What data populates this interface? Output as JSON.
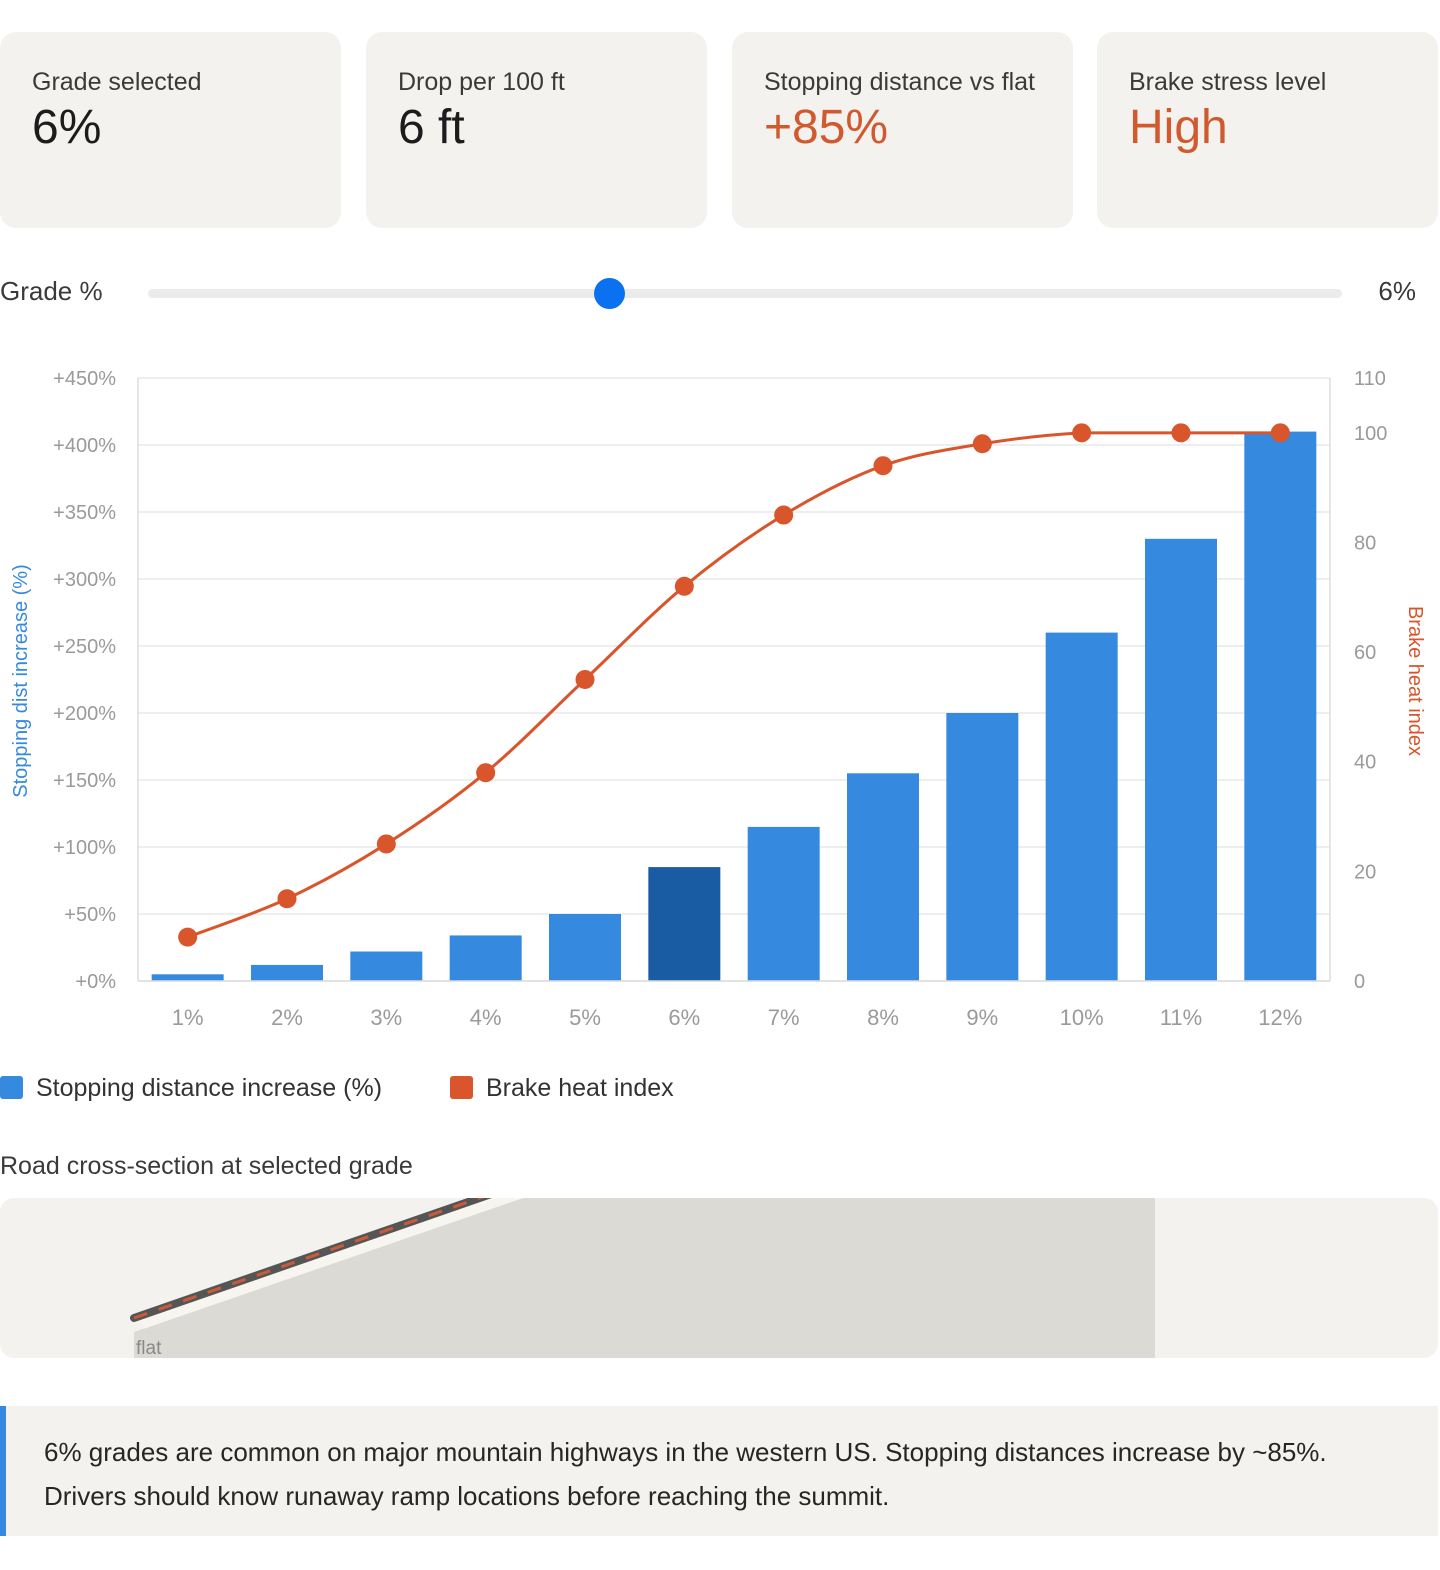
{
  "stats": [
    {
      "label": "Grade selected",
      "value": "6%",
      "warn": false
    },
    {
      "label": "Drop per 100 ft",
      "value": "6 ft",
      "warn": false
    },
    {
      "label": "Stopping distance vs flat",
      "value": "+85%",
      "warn": true
    },
    {
      "label": "Brake stress level",
      "value": "High",
      "warn": true
    }
  ],
  "slider": {
    "label": "Grade %",
    "value_text": "6%",
    "min": 1,
    "max": 12,
    "value": 6
  },
  "colors": {
    "bar": "#3589de",
    "bar_selected": "#1a5ca3",
    "line": "#d9552c",
    "accent": "#0a72f0",
    "card_bg": "#f3f2ee"
  },
  "chart_data": {
    "type": "bar+line",
    "categories": [
      "1%",
      "2%",
      "3%",
      "4%",
      "5%",
      "6%",
      "7%",
      "8%",
      "9%",
      "10%",
      "11%",
      "12%"
    ],
    "series": [
      {
        "name": "Stopping distance increase (%)",
        "type": "bar",
        "axis": "left",
        "values": [
          5,
          12,
          22,
          34,
          50,
          85,
          115,
          155,
          200,
          260,
          330,
          410
        ]
      },
      {
        "name": "Brake heat index",
        "type": "line",
        "axis": "right",
        "values": [
          8,
          15,
          25,
          38,
          55,
          72,
          85,
          94,
          98,
          100,
          100,
          100
        ]
      }
    ],
    "selected_index": 5,
    "y_left": {
      "label": "Stopping dist increase (%)",
      "min": 0,
      "max": 450,
      "ticks": [
        "+0%",
        "+50%",
        "+100%",
        "+150%",
        "+200%",
        "+250%",
        "+300%",
        "+350%",
        "+400%",
        "+450%"
      ]
    },
    "y_right": {
      "label": "Brake heat index",
      "min": 0,
      "max": 110,
      "ticks": [
        "0",
        "20",
        "40",
        "60",
        "80",
        "100",
        "110"
      ]
    },
    "grid": true,
    "legend_position": "bottom-left"
  },
  "road": {
    "title": "Road cross-section at selected grade",
    "flat_label": "flat"
  },
  "note": {
    "text": "6% grades are common on major mountain highways in the western US. Stopping distances increase by ~85%. Drivers should know runaway ramp locations before reaching the summit."
  }
}
